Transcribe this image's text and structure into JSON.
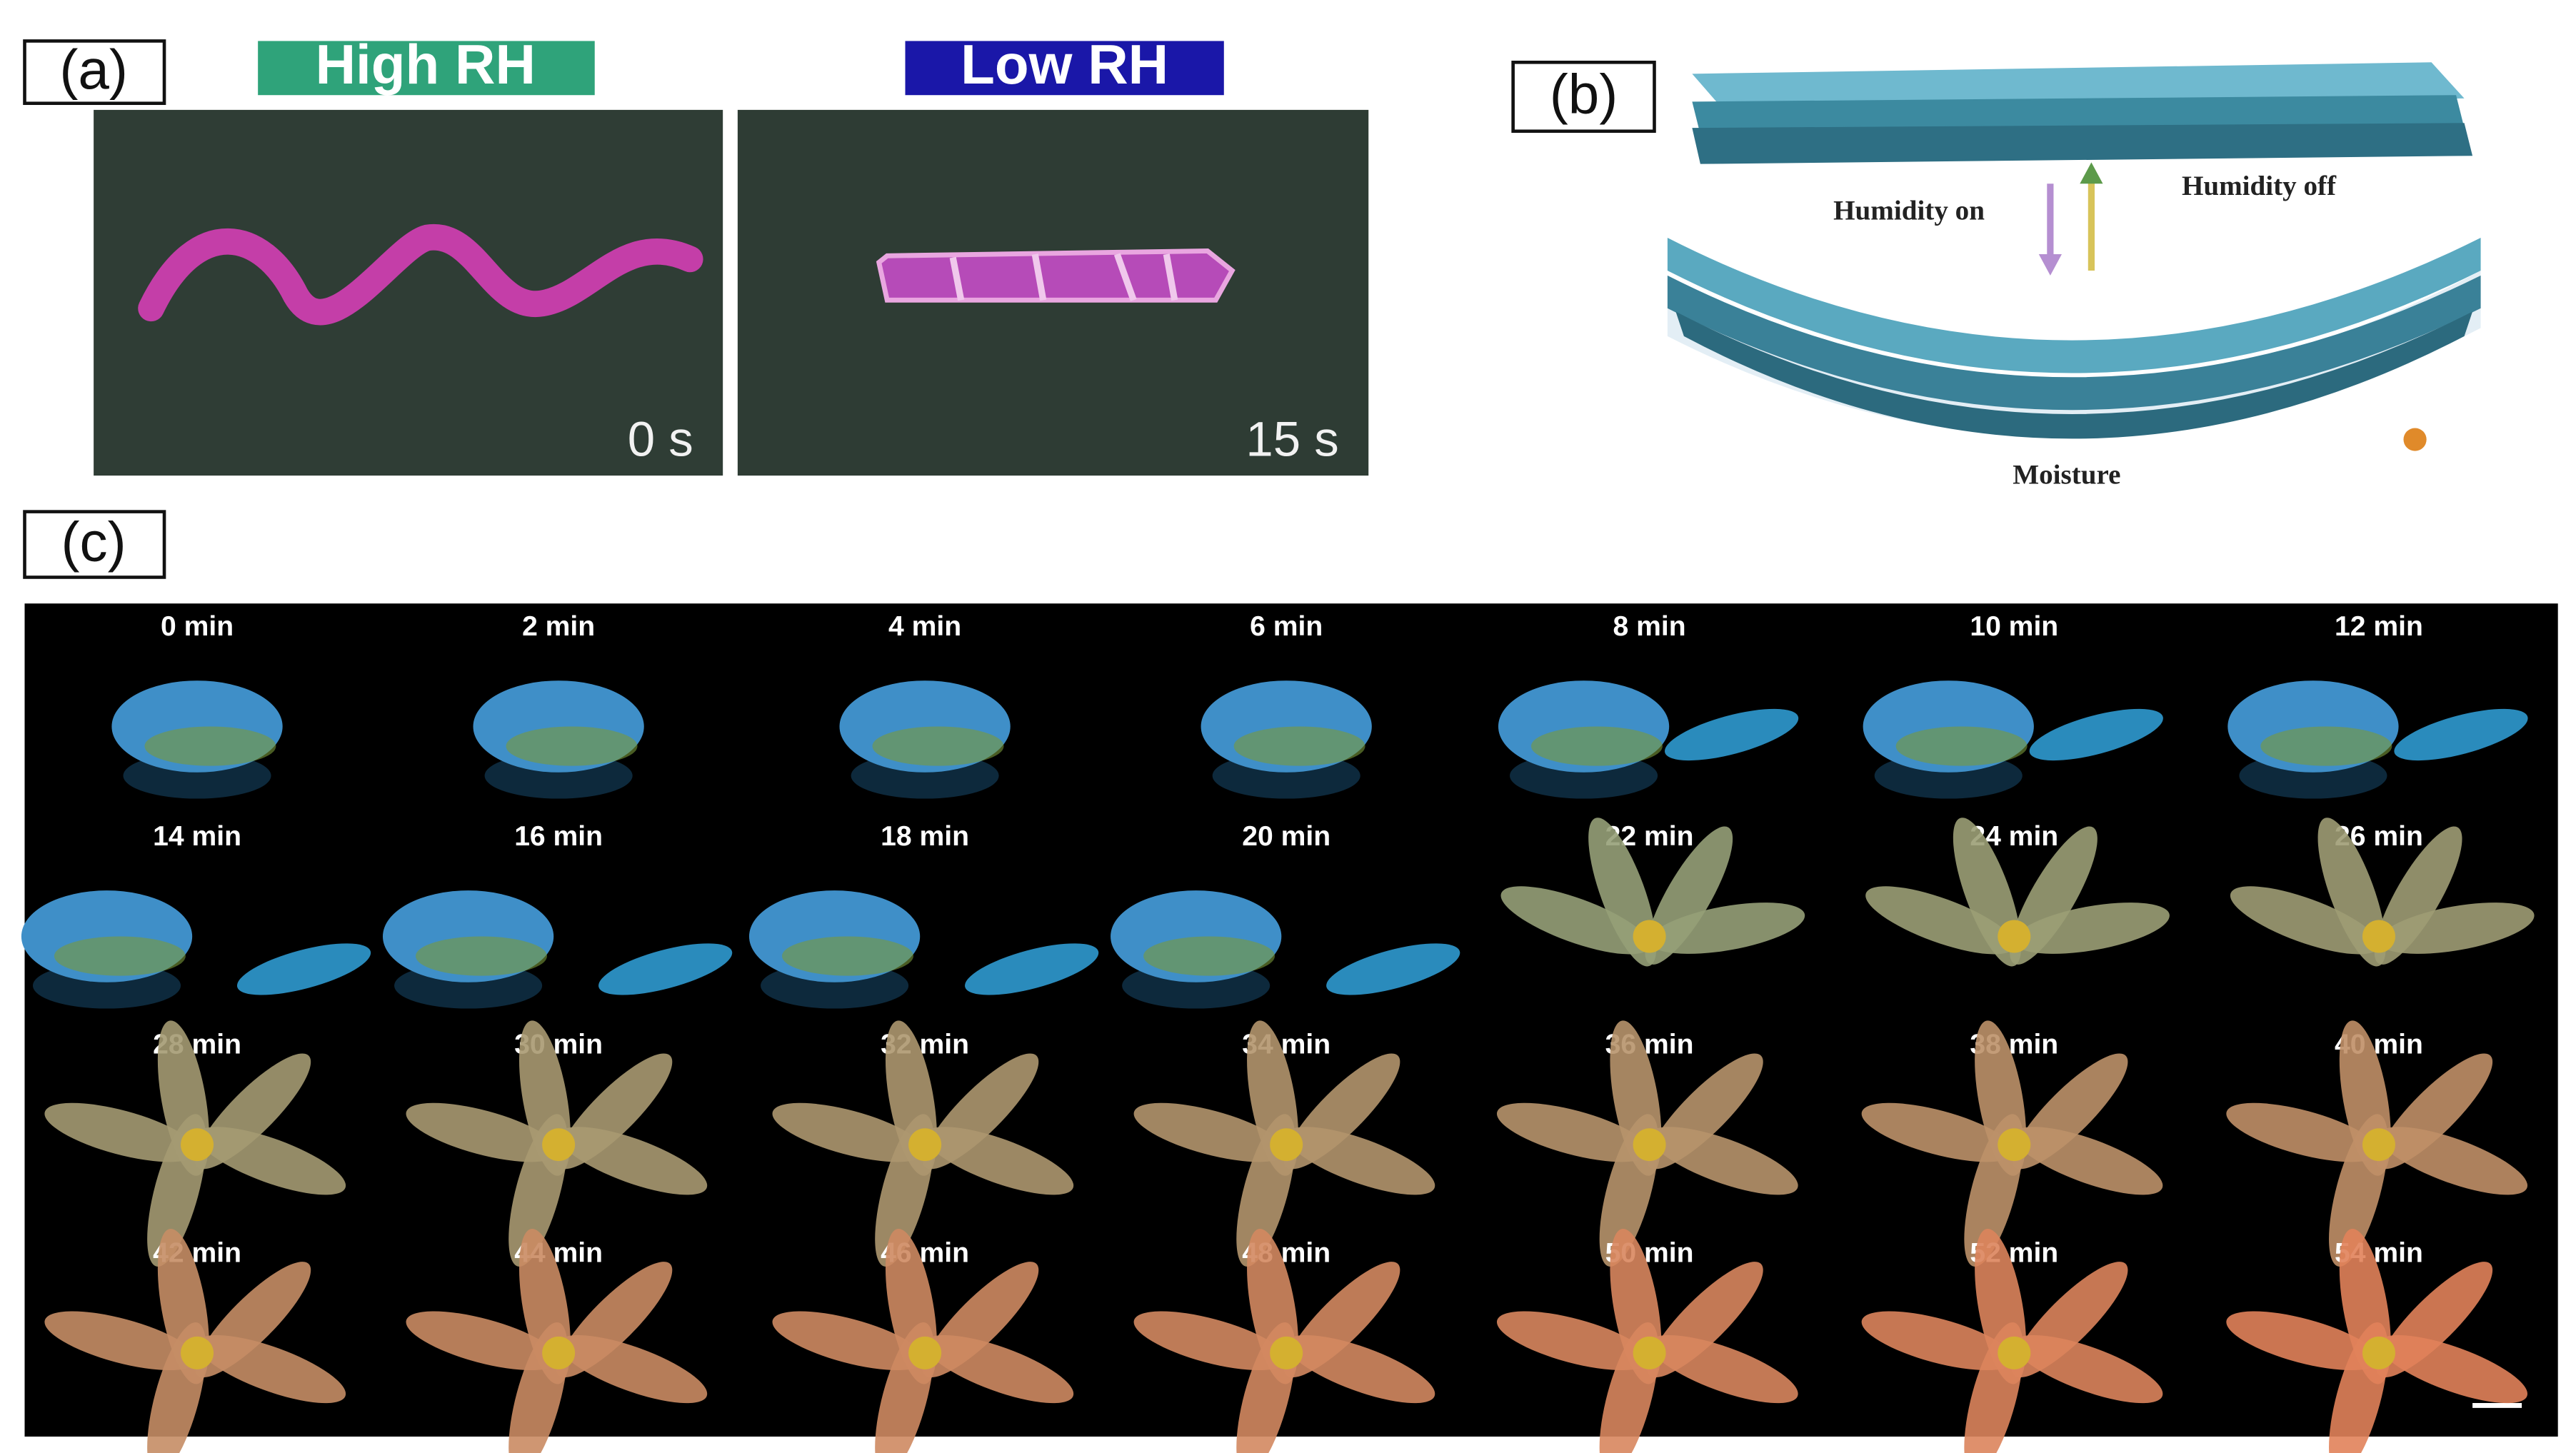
{
  "panel_a": {
    "label": "(a)",
    "left": {
      "condition": "High RH",
      "time": "0 s"
    },
    "right": {
      "condition": "Low RH",
      "time": "15 s"
    }
  },
  "panel_b": {
    "label": "(b)",
    "humidity_on": "Humidity on",
    "humidity_off": "Humidity off",
    "moisture": "Moisture"
  },
  "panel_c": {
    "label": "(c)",
    "frames": [
      "0 min",
      "2 min",
      "4 min",
      "6 min",
      "8 min",
      "10 min",
      "12 min",
      "14 min",
      "16 min",
      "18 min",
      "20 min",
      "22 min",
      "24 min",
      "26 min",
      "28 min",
      "30 min",
      "32 min",
      "34 min",
      "36 min",
      "38 min",
      "40 min",
      "42 min",
      "44 min",
      "46 min",
      "48 min",
      "50 min",
      "52 min",
      "54 min"
    ]
  }
}
